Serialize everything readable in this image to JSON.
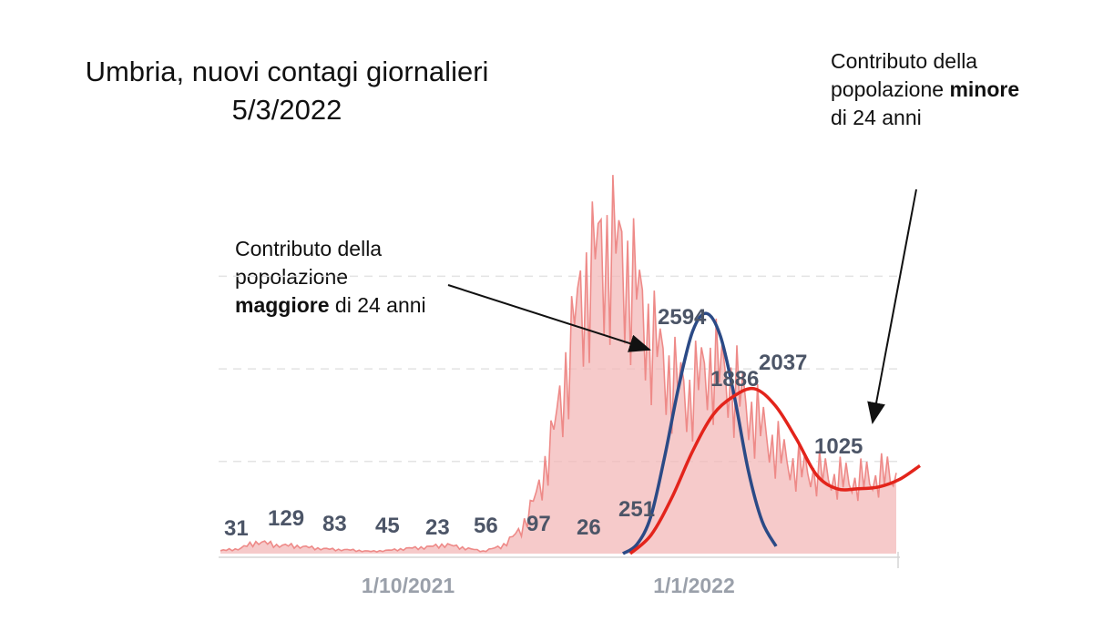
{
  "title": {
    "line1": "Umbria, nuovi contagi giornalieri",
    "line2": "5/3/2022"
  },
  "annotations": {
    "right": {
      "line1": "Contributo della",
      "line2_pre": "popolazione ",
      "line2_bold": "minore",
      "line3": "di 24 anni"
    },
    "left": {
      "line1": "Contributo della",
      "line2": "popolazione",
      "line3_bold": "maggiore",
      "line3_post": " di 24 anni"
    }
  },
  "colors": {
    "bars": "#f3b8b8",
    "daily_line": "#ee8a88",
    "curve_over24": "#2b4a86",
    "curve_under24": "#e3241b",
    "labels": "#4c5567",
    "grid": "#e3e3e3",
    "axis_text": "#9aa0aa"
  },
  "chart_data": {
    "type": "area",
    "x_ticks": [
      "1/10/2021",
      "1/1/2022"
    ],
    "data_labels": [
      "31",
      "129",
      "83",
      "45",
      "23",
      "56",
      "97",
      "26",
      "251",
      "2594",
      "1886",
      "2037",
      "1025"
    ],
    "series": [
      {
        "kind": "daily_cases",
        "values": [
          31,
          52,
          129,
          90,
          83,
          60,
          45,
          38,
          23,
          35,
          56,
          70,
          97,
          60,
          26,
          80,
          251,
          700,
          1500,
          2594,
          3200,
          3300,
          2900,
          2300,
          1886,
          1700,
          2037,
          1900,
          1600,
          1300,
          1025,
          900,
          850,
          800,
          780,
          820,
          850
        ]
      },
      {
        "kind": "smoothed_over24",
        "values": [
          0,
          100,
          400,
          1050,
          1800,
          2400,
          2594,
          2350,
          1700,
          900,
          350,
          80
        ]
      },
      {
        "kind": "smoothed_under24",
        "values": [
          0,
          200,
          600,
          1100,
          1500,
          1700,
          1780,
          1600,
          1250,
          850,
          700,
          700,
          720,
          800,
          950
        ]
      }
    ]
  }
}
